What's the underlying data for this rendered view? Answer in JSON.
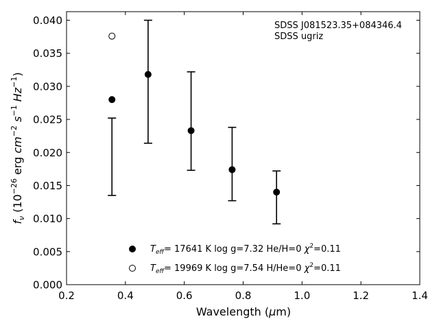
{
  "chart_data": {
    "type": "scatter",
    "title": "",
    "xlabel": "Wavelength (μm)",
    "ylabel": "f_ν (10^-26 erg cm^-2 s^-1 Hz^-1)",
    "xlim": [
      0.2,
      1.4
    ],
    "ylim": [
      0.0,
      0.0413
    ],
    "xticks": [
      "0.2",
      "0.4",
      "0.6",
      "0.8",
      "1.0",
      "1.2",
      "1.4"
    ],
    "yticks": [
      "0.000",
      "0.005",
      "0.010",
      "0.015",
      "0.020",
      "0.025",
      "0.030",
      "0.035",
      "0.040"
    ],
    "grid": false,
    "annotations": [
      "SDSS J081523.35+084346.4",
      "SDSS ugriz"
    ],
    "observed": {
      "x": [
        0.3543,
        0.477,
        0.6231,
        0.7625,
        0.9134
      ],
      "y_low": [
        0.0135,
        0.0214,
        0.0173,
        0.0127,
        0.0092
      ],
      "y_high": [
        0.0252,
        0.04,
        0.0322,
        0.0238,
        0.0172
      ]
    },
    "series": [
      {
        "name": "Teff= 17641 K  log g=7.32  He/H=0  χ2=0.11",
        "marker": "filled-circle",
        "x": [
          0.3543,
          0.477,
          0.6231,
          0.7625,
          0.9134
        ],
        "y": [
          0.028,
          0.0318,
          0.0233,
          0.0174,
          0.014
        ]
      },
      {
        "name": "Teff= 19969 K  log g=7.54  H/He=0  χ2=0.11",
        "marker": "open-circle",
        "x": [
          0.3543
        ],
        "y": [
          0.0376
        ]
      }
    ],
    "legend_placement": "bottom-center",
    "legend": [
      {
        "marker": "filled-circle",
        "teff": "17641",
        "logg": "log g=7.32",
        "comp": "He/H=0",
        "chi2": "=0.11"
      },
      {
        "marker": "open-circle",
        "teff": "19969",
        "logg": "log g=7.54",
        "comp": "H/He=0",
        "chi2": "=0.11"
      }
    ]
  }
}
